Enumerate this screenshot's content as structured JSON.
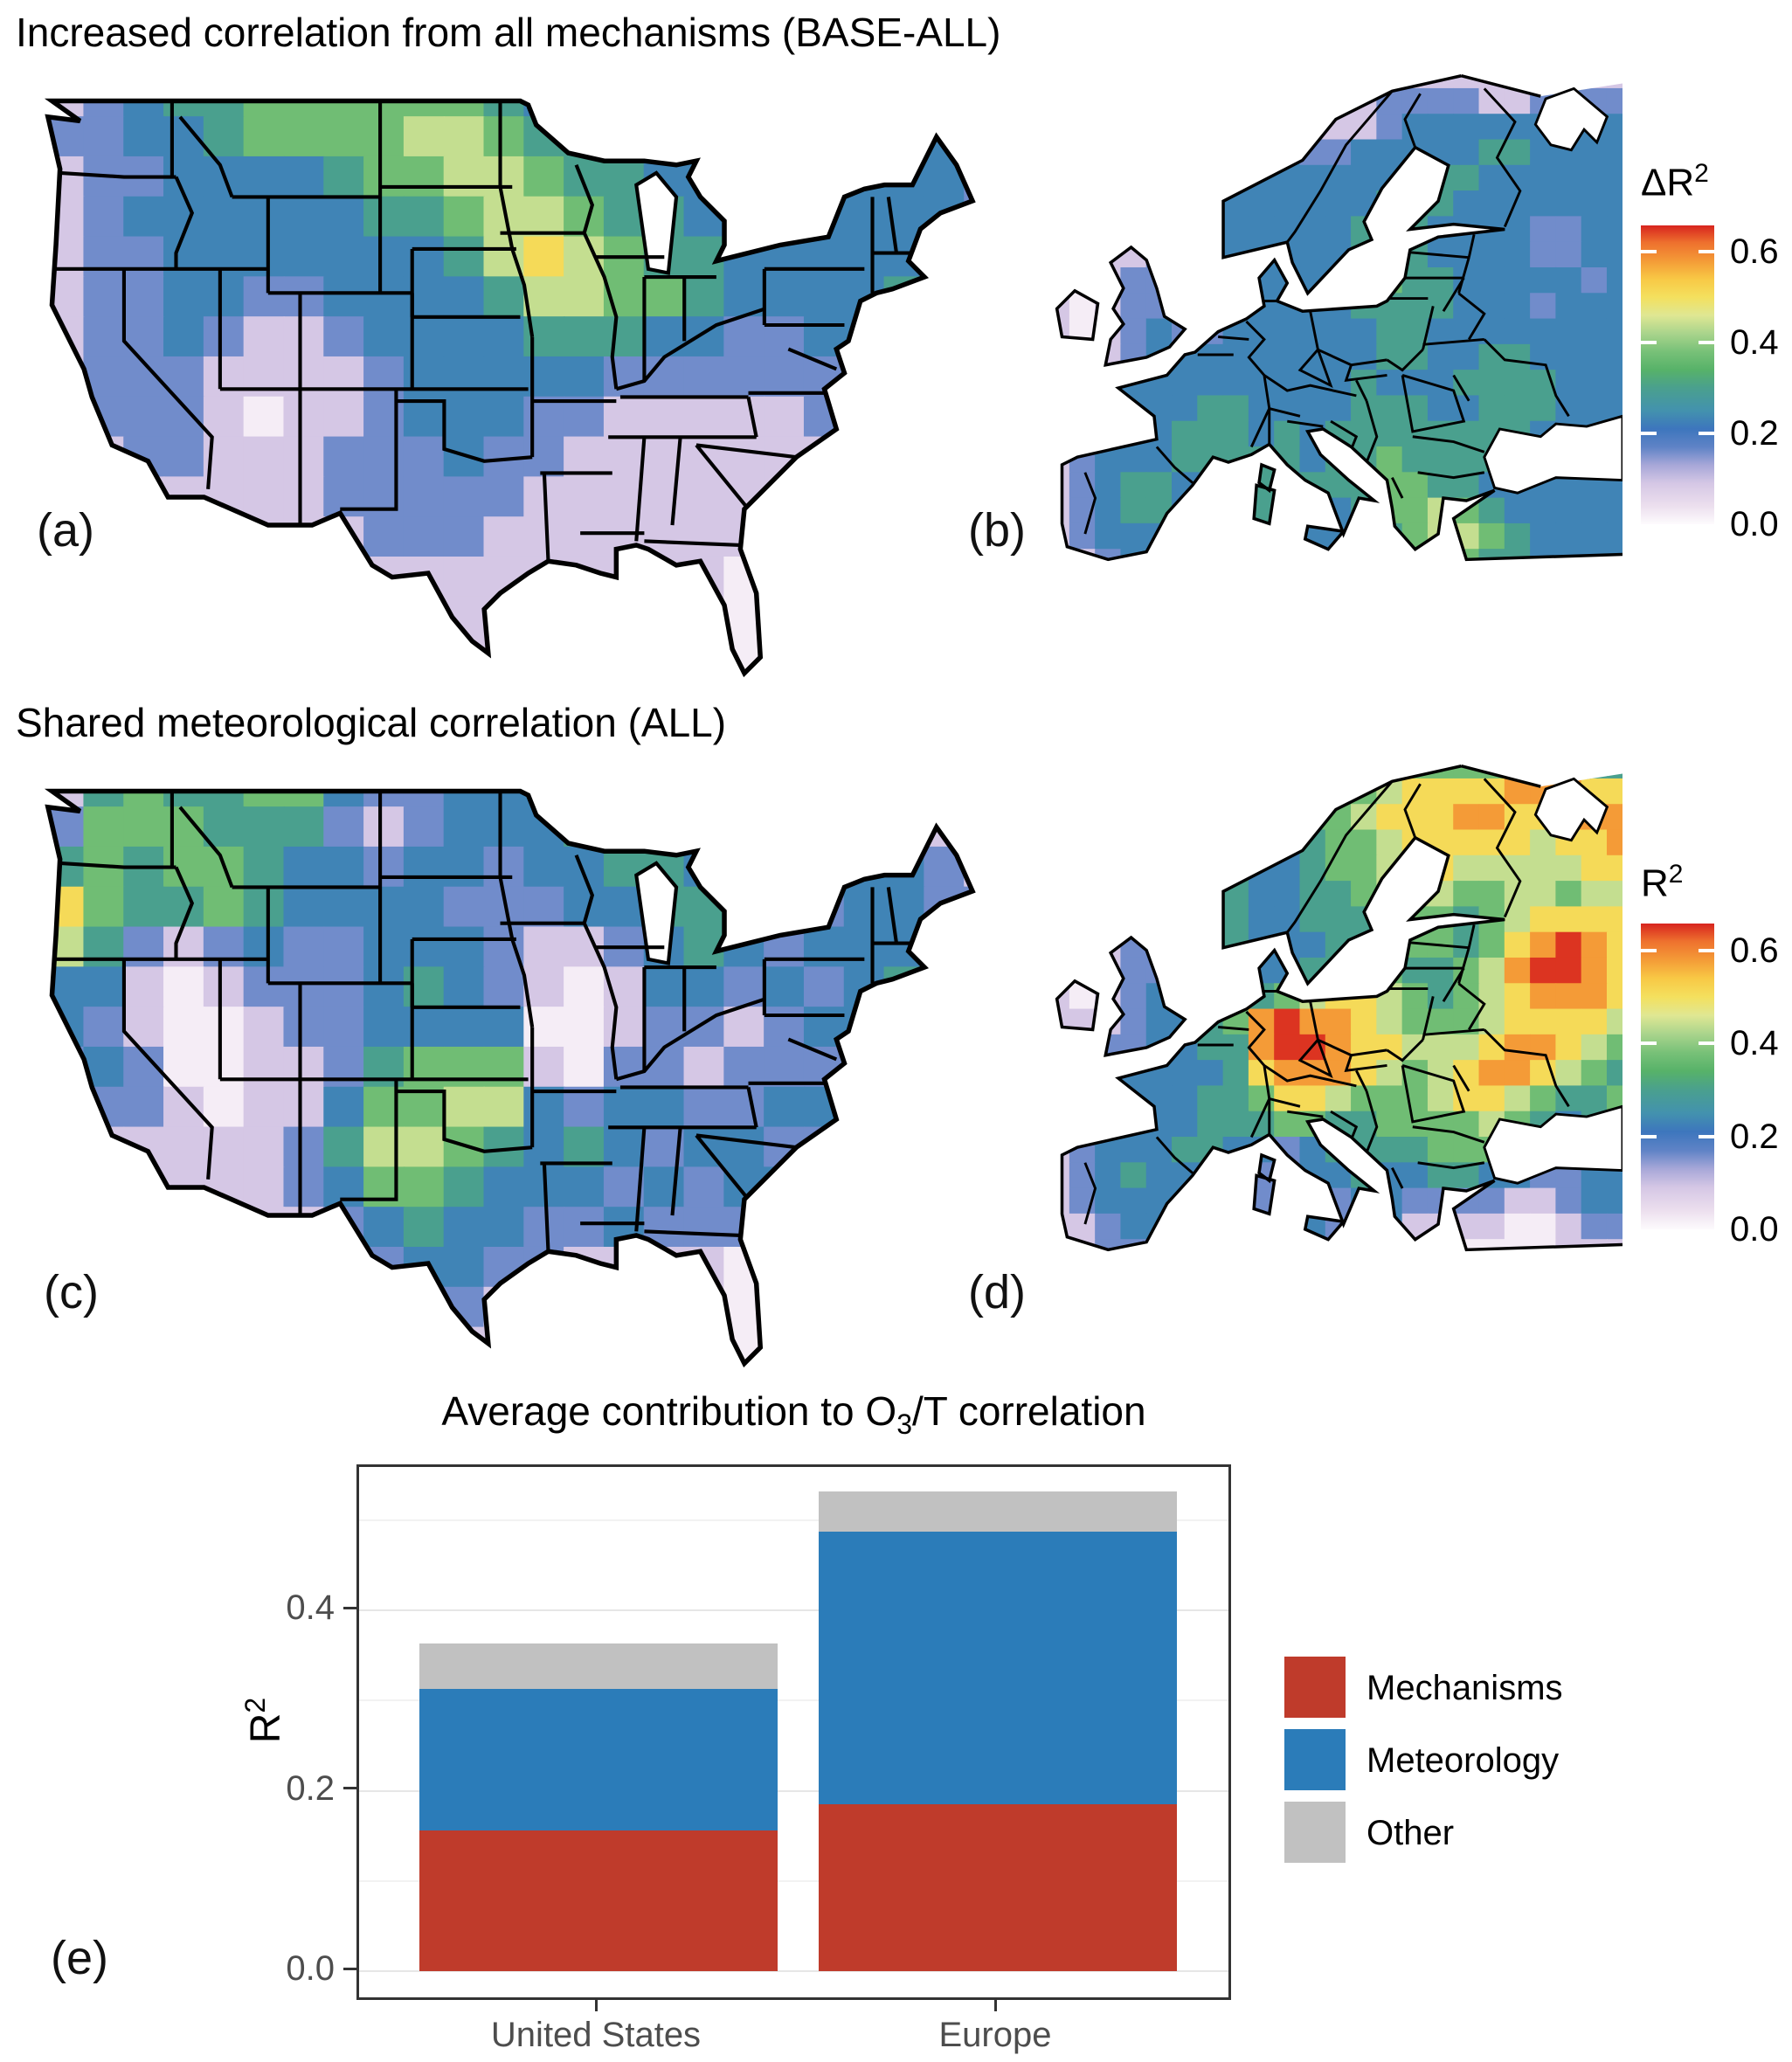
{
  "figure": {
    "title_row1": "Increased correlation from all mechanisms (BASE-ALL)",
    "title_row2": "Shared meteorological correlation (ALL)",
    "panel_labels": {
      "a": "(a)",
      "b": "(b)",
      "c": "(c)",
      "d": "(d)",
      "e": "(e)"
    }
  },
  "colormap": {
    "vmax": 0.658,
    "value_encoding": "grid digit d -> value = 0.02 + d*0.07",
    "stops": [
      {
        "v": 0.0,
        "c": "#fdfbfd"
      },
      {
        "v": 0.04,
        "c": "#ecdfee"
      },
      {
        "v": 0.09,
        "c": "#d5c7e5"
      },
      {
        "v": 0.13,
        "c": "#a7a7d8"
      },
      {
        "v": 0.17,
        "c": "#5f83c6"
      },
      {
        "v": 0.21,
        "c": "#3d76bd"
      },
      {
        "v": 0.25,
        "c": "#4392ae"
      },
      {
        "v": 0.3,
        "c": "#4aa08e"
      },
      {
        "v": 0.34,
        "c": "#57b269"
      },
      {
        "v": 0.38,
        "c": "#78c178"
      },
      {
        "v": 0.42,
        "c": "#a9d48c"
      },
      {
        "v": 0.46,
        "c": "#dfe793"
      },
      {
        "v": 0.5,
        "c": "#f4e05e"
      },
      {
        "v": 0.54,
        "c": "#f8c845"
      },
      {
        "v": 0.58,
        "c": "#f49b37"
      },
      {
        "v": 0.62,
        "c": "#ee712e"
      },
      {
        "v": 0.658,
        "c": "#d7241e"
      }
    ]
  },
  "colorbars": [
    {
      "title_base": "ΔR",
      "title_sup": "2",
      "ticks": [
        "0.6",
        "0.4",
        "0.2",
        "0.0"
      ],
      "tick_values": [
        0.6,
        0.4,
        0.2,
        0.0
      ],
      "vmax": 0.658
    },
    {
      "title_base": "R",
      "title_sup": "2",
      "ticks": [
        "0.6",
        "0.4",
        "0.2",
        "0.0"
      ],
      "tick_values": [
        0.6,
        0.4,
        0.2,
        0.0
      ],
      "vmax": 0.658
    }
  ],
  "chart_data": [
    {
      "id": "a",
      "type": "heatmap",
      "region": "United States",
      "title": "Increased correlation from all mechanisms (BASE-ALL)",
      "variable": "ΔR2",
      "colorbar": 0,
      "grid_cols": 24,
      "grid_rows": 16,
      "grid": [
        "123445555554333333333322",
        "223345555665443333333332",
        "122333345566544333333332",
        "123333334456654433333332",
        "122333333346765443333332",
        "122332233334665543333432",
        "122321123333444332233432",
        "122211112333332222223321",
        "122210112333221111122211",
        "112211122232211111112111",
        "111111122222111111111111",
        "111111112221111111111111",
        "111111111111111110011111",
        "111111111111111110001111",
        "111111111111111110000111",
        "111111111111111111000111"
      ]
    },
    {
      "id": "b",
      "type": "heatmap",
      "region": "Europe",
      "title": "Increased correlation from all mechanisms (BASE-ALL)",
      "variable": "ΔR2",
      "colorbar": 0,
      "grid_cols": 23,
      "grid_rows": 20,
      "grid": [
        "11111111111111111111111",
        "11111211111112222112222",
        "11111222211112333333333",
        "11111122332233333443333",
        "11111123333333444333333",
        "11111223333334443333333",
        "11111223333344433332233",
        "11112233333344433332233",
        "11122123333345443333323",
        "10122223333344443332333",
        "10123223333334433333333",
        "11123333333334433443333",
        "11133333333343334444333",
        "11233344333344433444333",
        "11233444343444444443333",
        "12333444443445444443333",
        "12344334434445544333333",
        "12344333444345565433333",
        "12333333443344566543333",
        "11233333343334455443333"
      ]
    },
    {
      "id": "c",
      "type": "heatmap",
      "region": "United States",
      "title": "Shared meteorological correlation (ALL)",
      "variable": "R2",
      "colorbar": 1,
      "grid_cols": 24,
      "grid_rows": 16,
      "grid": [
        "145445532233333433333211",
        "255544421233344333332211",
        "454554332332334433333321",
        "754454333322233443323322",
        "642123223332112343233332",
        "331012223432101332323432",
        "321001223333001221233322",
        "232001124555102212223221",
        "122101135566323322332211",
        "111111246654343233222111",
        "111111235543332323321111",
        "111111123433223222231111",
        "111111112332211110121111",
        "111111112221111110211111",
        "111111111111111110120111",
        "111111111111111111010111"
      ]
    },
    {
      "id": "d",
      "type": "heatmap",
      "region": "Europe",
      "title": "Shared meteorological correlation (ALL)",
      "variable": "R2",
      "colorbar": 1,
      "grid_cols": 23,
      "grid_rows": 20,
      "grid": [
        "11111222233455555555444",
        "11112344444456777788877",
        "11112455445567778877888",
        "11112455434556777776778",
        "11111245334556776666677",
        "11111244334456665566566",
        "11112244334445554567777",
        "11122134333444554578987",
        "10122234334455445689987",
        "10123244456776545678887",
        "11123345898876555677776",
        "11223344899877666788765",
        "11233334788876567887654",
        "11233344577655567765445",
        "11233344455445555654345",
        "12333443323444455543334",
        "12343333223343344332233",
        "12333332233233222211233",
        "11233222223223111100122",
        "11222222232222100000111"
      ]
    },
    {
      "id": "e",
      "type": "bar",
      "stacked": true,
      "title_parts": {
        "prefix": "Average contribution to O",
        "sub": "3",
        "suffix": "/T correlation"
      },
      "categories": [
        "United States",
        "Europe"
      ],
      "series": [
        {
          "name": "Mechanisms",
          "color": "#bf3b2b",
          "values": [
            0.156,
            0.185
          ]
        },
        {
          "name": "Meteorology",
          "color": "#2b7cb9",
          "values": [
            0.157,
            0.302
          ]
        },
        {
          "name": "Other",
          "color": "#c1c1c1",
          "values": [
            0.05,
            0.045
          ]
        }
      ],
      "ylabel_base": "R",
      "ylabel_sup": "2",
      "y_tick_labels": [
        "0.0",
        "0.2",
        "0.4"
      ],
      "y_tick_values": [
        0.0,
        0.2,
        0.4
      ],
      "y_minor_values": [
        0.1,
        0.3,
        0.5
      ],
      "ylim": [
        0,
        0.558
      ],
      "grid": "on",
      "legend_position": "right"
    }
  ]
}
